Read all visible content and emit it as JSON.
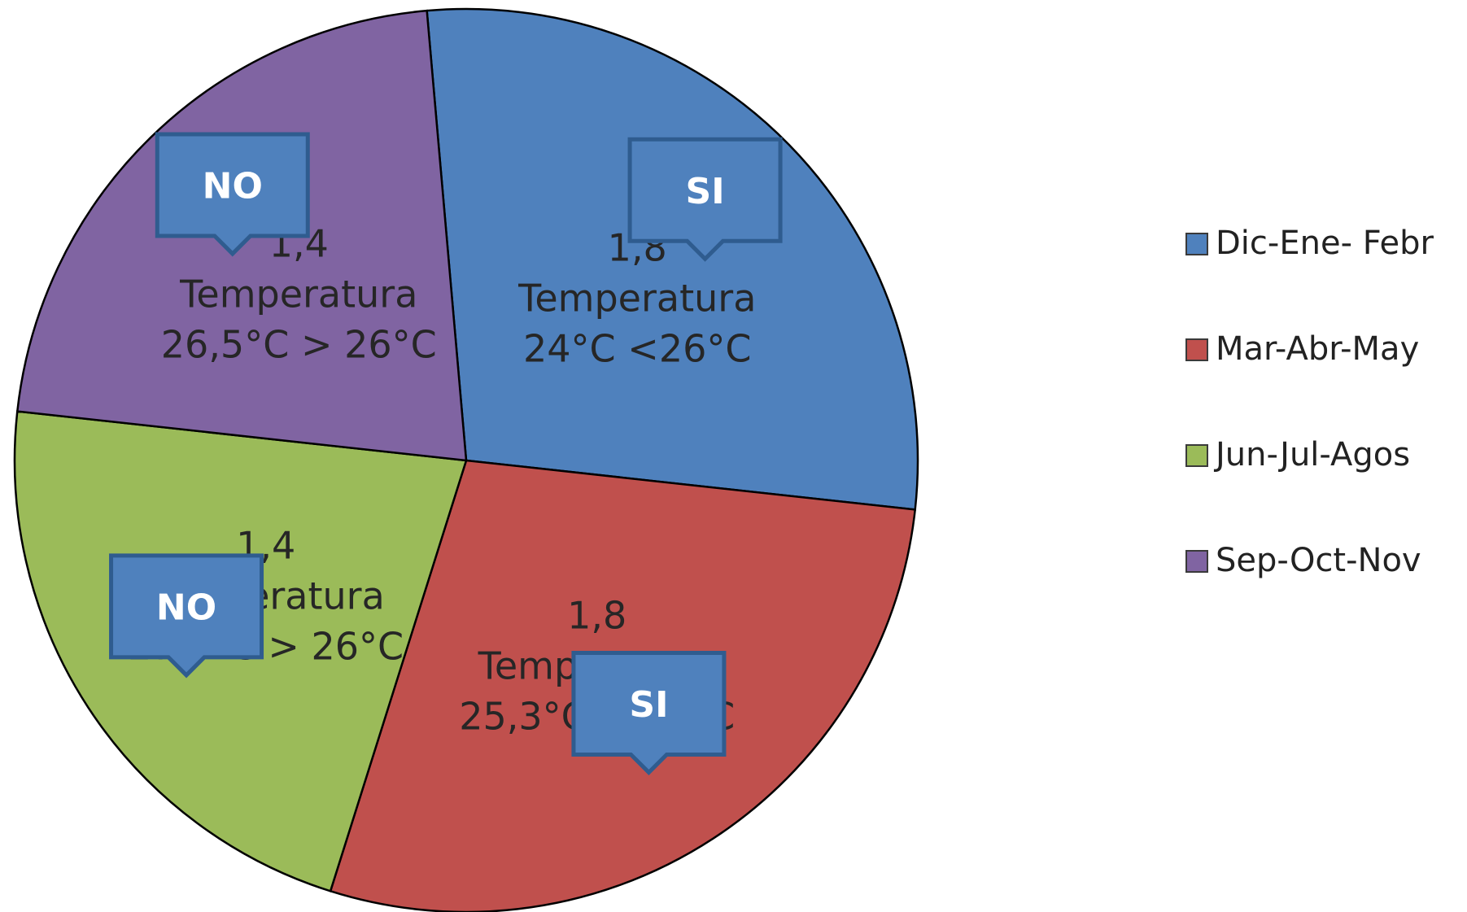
{
  "chart_data": {
    "type": "pie",
    "title": "",
    "legend_position": "right",
    "slices": [
      {
        "name": "Dic-Ene- Febr",
        "value": 1.8,
        "value_label": "1,8",
        "line2": "Temperatura",
        "line3": "24°C <26°C",
        "callout": "SI",
        "color": "#4F81BD"
      },
      {
        "name": "Mar-Abr-May",
        "value": 1.8,
        "value_label": "1,8",
        "line2": "Temperatura",
        "line3": "25,3°C < 26°C",
        "callout": "SI",
        "color": "#C0504D"
      },
      {
        "name": "Jun-Jul-Agos",
        "value": 1.4,
        "value_label": "1,4",
        "line2": "Temperatura",
        "line3": "27,5°C > 26°C",
        "callout": "NO",
        "color": "#9BBB59"
      },
      {
        "name": "Sep-Oct-Nov",
        "value": 1.4,
        "value_label": "1,4",
        "line2": "Temperatura",
        "line3": "26,5°C > 26°C",
        "callout": "NO",
        "color": "#8064A2"
      }
    ],
    "callout_color": "#4F81BD",
    "callout_border_color": "#2F5C8F",
    "outline_color": "#000000"
  }
}
